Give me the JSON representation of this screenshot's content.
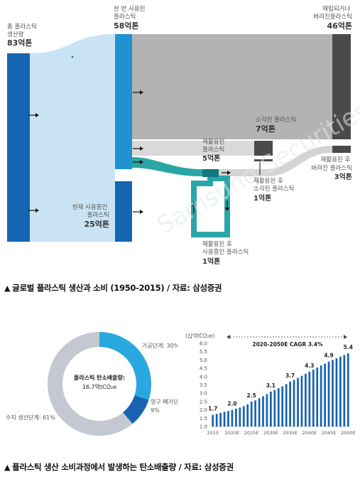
{
  "sankey": {
    "nodes": {
      "total": {
        "label_lines": [
          "총 플라스틱",
          "생산량"
        ],
        "value": "83억톤"
      },
      "once_used": {
        "label_lines": [
          "한 번 사용된",
          "플라스틱"
        ],
        "value": "58억톤"
      },
      "landfill": {
        "label_lines": [
          "매립되거나",
          "버려진플라스틱"
        ],
        "value": "46억톤"
      },
      "incinerated": {
        "label_lines": [
          "소각된 플라스틱"
        ],
        "value": "7억톤"
      },
      "recycled": {
        "label_lines": [
          "재활용된",
          "플라스틱"
        ],
        "value": "5억톤"
      },
      "recycled_discarded": {
        "label_lines": [
          "재활용된 후",
          "버려진 플라스틱"
        ],
        "value": "3억톤"
      },
      "recycled_incinerated": {
        "label_lines": [
          "재활용된 후",
          "소각된 플라스틱"
        ],
        "value": "1억톤"
      },
      "in_use": {
        "label_lines": [
          "현재 사용중인",
          "플라스틱"
        ],
        "value": "25억톤"
      },
      "recycled_in_use": {
        "label_lines": [
          "재활용된 후",
          "사용중인 플라스틱"
        ],
        "value": "1억톤"
      }
    },
    "watermark": "Samsung Securities",
    "colors": {
      "dark_blue": "#1565b0",
      "mid_blue": "#1f93cf",
      "light_blue_flow": "#c9e3f5",
      "grey_flow": "#b4b4b4",
      "dark_grey": "#4a4a4a",
      "light_grey_flow": "#d6d6d6",
      "teal": "#2aa6a6"
    }
  },
  "caption1": "글로벌 플라스틱 생산과 소비 (1950-2015) / 자료: 삼성증권",
  "caption_marker": "▲",
  "donut": {
    "center_line1": "플라스틱 탄소배출량:",
    "center_line2": "16.7억tCO₂e",
    "slices": [
      {
        "name": "가공단계",
        "label": "가공단계: 30%",
        "value": 30,
        "color": "#29a8df"
      },
      {
        "name": "영구 폐기단계",
        "label_lines": [
          "영구 폐기단계:",
          "9%"
        ],
        "value": 9,
        "color": "#1763b0"
      },
      {
        "name": "수지 생산단계",
        "label": "수지 생산단계: 61%",
        "value": 61,
        "color": "#c4c8d0"
      }
    ]
  },
  "chart_data": {
    "type": "bar",
    "unit_label": "(십억tCO₂e)",
    "annotation": "2020-2050E CAGR 3.4%",
    "categories": [
      "2015",
      "2016",
      "2017",
      "2018",
      "2019",
      "2020E",
      "2021E",
      "2022E",
      "2023E",
      "2024E",
      "2025E",
      "2026E",
      "2027E",
      "2028E",
      "2029E",
      "2030E",
      "2031E",
      "2032E",
      "2033E",
      "2034E",
      "2035E",
      "2036E",
      "2037E",
      "2038E",
      "2039E",
      "2040E",
      "2041E",
      "2042E",
      "2043E",
      "2044E",
      "2045E",
      "2046E",
      "2047E",
      "2048E",
      "2049E",
      "2050E"
    ],
    "values": [
      1.7,
      1.76,
      1.82,
      1.88,
      1.94,
      2.0,
      2.07,
      2.14,
      2.22,
      2.34,
      2.5,
      2.57,
      2.7,
      2.82,
      2.95,
      3.1,
      3.2,
      3.3,
      3.42,
      3.55,
      3.7,
      3.8,
      3.92,
      4.05,
      4.17,
      4.3,
      4.42,
      4.55,
      4.67,
      4.78,
      4.9,
      5.0,
      5.1,
      5.2,
      5.3,
      5.4
    ],
    "value_labels": [
      {
        "index": 0,
        "text": "1.7"
      },
      {
        "index": 5,
        "text": "2.0"
      },
      {
        "index": 10,
        "text": "2.5"
      },
      {
        "index": 15,
        "text": "3.1"
      },
      {
        "index": 20,
        "text": "3.7"
      },
      {
        "index": 25,
        "text": "4.3"
      },
      {
        "index": 30,
        "text": "4.9"
      },
      {
        "index": 35,
        "text": "5.4"
      }
    ],
    "x_tick_labels": [
      "2015",
      "2020E",
      "2025E",
      "2030E",
      "2035E",
      "2040E",
      "2045E",
      "2050E"
    ],
    "y_ticks": [
      "1.0",
      "1.5",
      "2.0",
      "2.5",
      "3.0",
      "3.5",
      "4.0",
      "4.5",
      "5.0",
      "5.5",
      "6.0"
    ],
    "ylim": [
      1.0,
      6.0
    ],
    "bar_color": "#1763b0",
    "grid": false
  },
  "caption2": "플라스틱 생산 소비과정에서 발생하는 탄소배출량 / 자료: 삼성증권"
}
